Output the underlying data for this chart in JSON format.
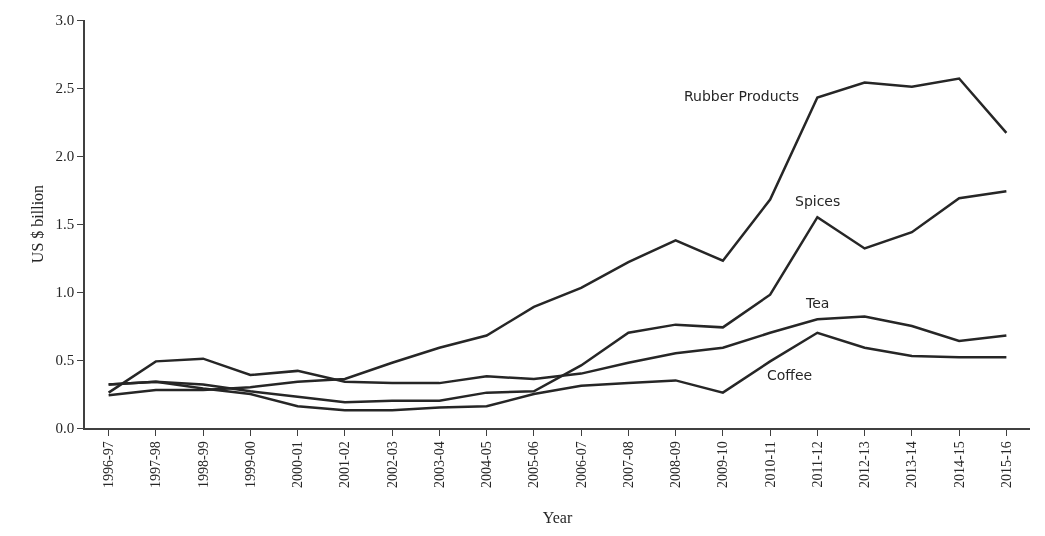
{
  "chart_data": {
    "type": "line",
    "xlabel": "Year",
    "ylabel": "US $ billion",
    "categories": [
      "1996-97",
      "1997-98",
      "1998-99",
      "1999-00",
      "2000-01",
      "2001-02",
      "2002-03",
      "2003-04",
      "2004-05",
      "2005-06",
      "2006-07",
      "2007-08",
      "2008-09",
      "2009-10",
      "2010-11",
      "2011-12",
      "2012-13",
      "2013-14",
      "2014-15",
      "2015-16"
    ],
    "series": [
      {
        "name": "Rubber Products",
        "color": "#262626",
        "values": [
          0.24,
          0.28,
          0.28,
          0.3,
          0.34,
          0.36,
          0.48,
          0.59,
          0.68,
          0.89,
          1.03,
          1.22,
          1.38,
          1.23,
          1.68,
          2.43,
          2.54,
          2.51,
          2.57,
          2.17
        ]
      },
      {
        "name": "Spices",
        "color": "#262626",
        "values": [
          0.32,
          0.34,
          0.32,
          0.27,
          0.23,
          0.19,
          0.2,
          0.2,
          0.26,
          0.27,
          0.46,
          0.7,
          0.76,
          0.74,
          0.98,
          1.55,
          1.32,
          1.44,
          1.69,
          1.74
        ]
      },
      {
        "name": "Tea",
        "color": "#262626",
        "values": [
          0.26,
          0.49,
          0.51,
          0.39,
          0.42,
          0.34,
          0.33,
          0.33,
          0.38,
          0.36,
          0.4,
          0.48,
          0.55,
          0.59,
          0.7,
          0.8,
          0.82,
          0.75,
          0.64,
          0.68
        ]
      },
      {
        "name": "Coffee",
        "color": "#262626",
        "values": [
          0.32,
          0.34,
          0.29,
          0.25,
          0.16,
          0.13,
          0.13,
          0.15,
          0.16,
          0.25,
          0.31,
          0.33,
          0.35,
          0.26,
          0.49,
          0.7,
          0.59,
          0.53,
          0.52,
          0.52
        ]
      }
    ],
    "ylim": [
      0,
      3
    ],
    "yticks": [
      {
        "value": 0,
        "label": "0.0"
      },
      {
        "value": 0.5,
        "label": "0.5"
      },
      {
        "value": 1,
        "label": "1.0"
      },
      {
        "value": 1.5,
        "label": "1.5"
      },
      {
        "value": 2,
        "label": "2.0"
      },
      {
        "value": 2.5,
        "label": "2.5"
      },
      {
        "value": 3,
        "label": "3.0"
      }
    ],
    "grid": false,
    "marker": "none",
    "line_style": "solid"
  }
}
